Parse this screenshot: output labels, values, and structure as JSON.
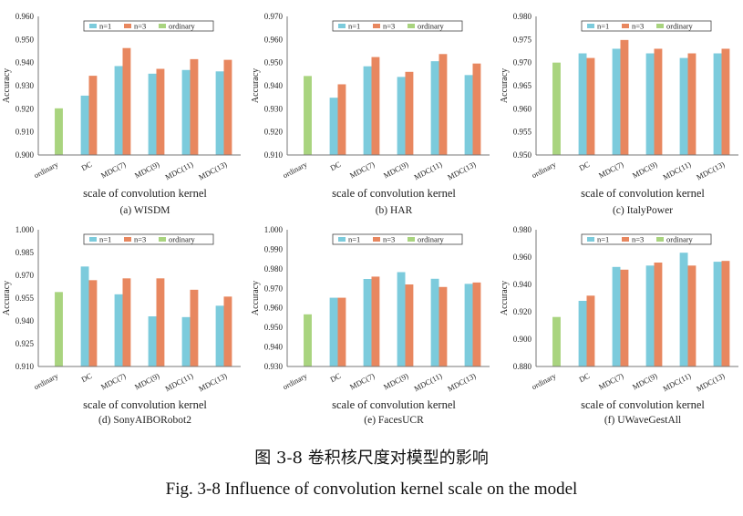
{
  "figure": {
    "caption_cn": "图 3-8  卷积核尺度对模型的影响",
    "caption_en": "Fig. 3-8 Influence of convolution kernel scale on the model"
  },
  "colors": {
    "n1": "#7ccbdc",
    "n3": "#e8875f",
    "ordinary": "#a9d47f"
  },
  "chart_data": [
    {
      "type": "bar",
      "subtitle": "(a) WISDM",
      "xlabel": "scale of convolution kernel",
      "ylabel": "Accuracy",
      "ylim": [
        0.9,
        0.96
      ],
      "yticks": [
        "0.900",
        "0.910",
        "0.920",
        "0.930",
        "0.940",
        "0.950",
        "0.960"
      ],
      "categories": [
        "ordinary",
        "DC",
        "MDC(7)",
        "MDC(9)",
        "MDC(11)",
        "MDC(13)"
      ],
      "legend": [
        "n=1",
        "n=3",
        "ordinary"
      ],
      "ordinary": 0.9202,
      "series": [
        {
          "name": "n=1",
          "values": [
            null,
            0.9257,
            0.9385,
            0.9352,
            0.9368,
            0.9362
          ]
        },
        {
          "name": "n=3",
          "values": [
            null,
            0.9343,
            0.9463,
            0.9373,
            0.9415,
            0.9412
          ]
        }
      ]
    },
    {
      "type": "bar",
      "subtitle": "(b) HAR",
      "xlabel": "scale of convolution kernel",
      "ylabel": "Accuracy",
      "ylim": [
        0.91,
        0.97
      ],
      "yticks": [
        "0.910",
        "0.920",
        "0.930",
        "0.940",
        "0.950",
        "0.960",
        "0.970"
      ],
      "categories": [
        "ordinary",
        "DC",
        "MDC(7)",
        "MDC(9)",
        "MDC(11)",
        "MDC(13)"
      ],
      "legend": [
        "n=1",
        "n=3",
        "ordinary"
      ],
      "ordinary": 0.9442,
      "series": [
        {
          "name": "n=1",
          "values": [
            null,
            0.9348,
            0.9484,
            0.9438,
            0.9506,
            0.9446
          ]
        },
        {
          "name": "n=3",
          "values": [
            null,
            0.9406,
            0.9524,
            0.946,
            0.9537,
            0.9496
          ]
        }
      ]
    },
    {
      "type": "bar",
      "subtitle": "(c) ItalyPower",
      "xlabel": "scale of convolution kernel",
      "ylabel": "Accuracy",
      "ylim": [
        0.95,
        0.98
      ],
      "yticks": [
        "0.950",
        "0.955",
        "0.960",
        "0.965",
        "0.970",
        "0.975",
        "0.980"
      ],
      "categories": [
        "ordinary",
        "DC",
        "MDC(7)",
        "MDC(9)",
        "MDC(11)",
        "MDC(13)"
      ],
      "legend": [
        "n=1",
        "n=3",
        "ordinary"
      ],
      "ordinary": 0.97,
      "series": [
        {
          "name": "n=1",
          "values": [
            null,
            0.972,
            0.973,
            0.972,
            0.971,
            0.972
          ]
        },
        {
          "name": "n=3",
          "values": [
            null,
            0.971,
            0.9749,
            0.973,
            0.972,
            0.973
          ]
        }
      ]
    },
    {
      "type": "bar",
      "subtitle": "(d) SonyAIBORobot2",
      "xlabel": "scale of convolution kernel",
      "ylabel": "Accuracy",
      "ylim": [
        0.91,
        1.0
      ],
      "yticks": [
        "0.910",
        "0.925",
        "0.940",
        "0.955",
        "0.970",
        "0.985",
        "1.000"
      ],
      "categories": [
        "ordinary",
        "DC",
        "MDC(7)",
        "MDC(9)",
        "MDC(11)",
        "MDC(13)"
      ],
      "legend": [
        "n=1",
        "n=3",
        "ordinary"
      ],
      "ordinary": 0.959,
      "series": [
        {
          "name": "n=1",
          "values": [
            null,
            0.9758,
            0.9575,
            0.943,
            0.9425,
            0.95
          ]
        },
        {
          "name": "n=3",
          "values": [
            null,
            0.9668,
            0.968,
            0.968,
            0.9605,
            0.956
          ]
        }
      ]
    },
    {
      "type": "bar",
      "subtitle": "(e) FacesUCR",
      "xlabel": "scale of convolution kernel",
      "ylabel": "Accuracy",
      "ylim": [
        0.93,
        1.0
      ],
      "yticks": [
        "0.930",
        "0.940",
        "0.950",
        "0.960",
        "0.970",
        "0.980",
        "0.990",
        "1.000"
      ],
      "categories": [
        "ordinary",
        "DC",
        "MDC(7)",
        "MDC(9)",
        "MDC(11)",
        "MDC(13)"
      ],
      "legend": [
        "n=1",
        "n=3",
        "ordinary"
      ],
      "ordinary": 0.9567,
      "series": [
        {
          "name": "n=1",
          "values": [
            null,
            0.9652,
            0.9748,
            0.9783,
            0.9749,
            0.9723
          ]
        },
        {
          "name": "n=3",
          "values": [
            null,
            0.9652,
            0.976,
            0.972,
            0.9707,
            0.973
          ]
        }
      ]
    },
    {
      "type": "bar",
      "subtitle": "(f) UWaveGestAll",
      "xlabel": "scale of convolution kernel",
      "ylabel": "Accuracy",
      "ylim": [
        0.88,
        0.98
      ],
      "yticks": [
        "0.880",
        "0.900",
        "0.920",
        "0.940",
        "0.960",
        "0.980"
      ],
      "categories": [
        "ordinary",
        "DC",
        "MDC(7)",
        "MDC(9)",
        "MDC(11)",
        "MDC(13)"
      ],
      "legend": [
        "n=1",
        "n=3",
        "ordinary"
      ],
      "ordinary": 0.9162,
      "series": [
        {
          "name": "n=1",
          "values": [
            null,
            0.928,
            0.9528,
            0.9538,
            0.9632,
            0.9566
          ]
        },
        {
          "name": "n=3",
          "values": [
            null,
            0.9318,
            0.9508,
            0.956,
            0.9538,
            0.9572
          ]
        }
      ]
    }
  ]
}
